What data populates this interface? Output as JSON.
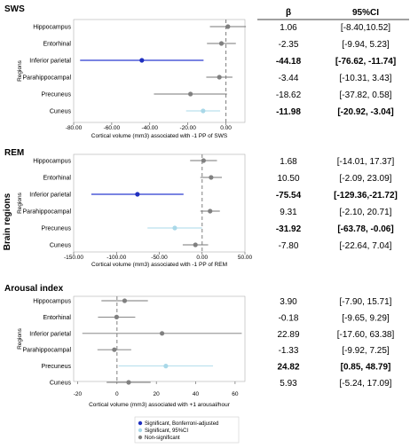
{
  "side_label": "Brain regions",
  "table_headers": {
    "beta": "β",
    "ci": "95%CI"
  },
  "legend": [
    {
      "label": "Significant, Bonferroni-adjusted",
      "color": "#1f2fbf"
    },
    {
      "label": "Significant, 95%CI",
      "color": "#a9d8e8"
    },
    {
      "label": "Non-significant",
      "color": "#808080"
    }
  ],
  "chart_data": [
    {
      "type": "scatter",
      "title": "SWS",
      "xlabel": "Cortical volume (mm3) associated with -1 PP of SWS",
      "ylabel": "Regions",
      "xlim": [
        -80,
        10
      ],
      "xticks": [
        -80,
        -60,
        -40,
        -20,
        0
      ],
      "xtick_labels": [
        "-80.00",
        "-60.00",
        "-40.00",
        "-20.00",
        "0.00"
      ],
      "categories": [
        "Hippocampus",
        "Entorhinal",
        "Inferior parietal",
        "Parahippocampal",
        "Precuneus",
        "Cuneus"
      ],
      "estimates": [
        1.06,
        -2.35,
        -44.18,
        -3.44,
        -18.62,
        -11.98
      ],
      "ci_low": [
        -8.4,
        -9.94,
        -76.62,
        -10.31,
        -37.82,
        -20.92
      ],
      "ci_high": [
        10.52,
        5.23,
        -11.74,
        3.43,
        0.58,
        -3.04
      ],
      "significance": [
        "ns",
        "ns",
        "bonferroni",
        "ns",
        "ns",
        "ci95"
      ],
      "beta_text": [
        "1.06",
        "-2.35",
        "-44.18",
        "-3.44",
        "-18.62",
        "-11.98"
      ],
      "ci_text": [
        "[-8.40,10.52]",
        "[-9.94, 5.23]",
        "[-76.62, -11.74]",
        "[-10.31, 3.43]",
        "[-37.82, 0.58]",
        "[-20.92, -3.04]"
      ],
      "bold_rows": [
        2,
        5
      ]
    },
    {
      "type": "scatter",
      "title": "REM",
      "xlabel": "Cortical volume (mm3) associated with -1 PP of REM",
      "ylabel": "Regions",
      "xlim": [
        -150,
        50
      ],
      "xticks": [
        -150,
        -100,
        -50,
        0,
        50
      ],
      "xtick_labels": [
        "-150.00",
        "-100.00",
        "-50.00",
        "0.00",
        "50.00"
      ],
      "categories": [
        "Hippocampus",
        "Entorhinal",
        "Inferior parietal",
        "Parahippocampal",
        "Precuneus",
        "Cuneus"
      ],
      "estimates": [
        1.68,
        10.5,
        -75.54,
        9.31,
        -31.92,
        -7.8
      ],
      "ci_low": [
        -14.01,
        -2.09,
        -129.36,
        -2.1,
        -63.78,
        -22.64
      ],
      "ci_high": [
        17.37,
        23.09,
        -21.72,
        20.71,
        -0.06,
        7.04
      ],
      "significance": [
        "ns",
        "ns",
        "bonferroni",
        "ns",
        "ci95",
        "ns"
      ],
      "beta_text": [
        "1.68",
        "10.50",
        "-75.54",
        "9.31",
        "-31.92",
        "-7.80"
      ],
      "ci_text": [
        "[-14.01, 17.37]",
        "[-2.09, 23.09]",
        "[-129.36,-21.72]",
        "[-2.10, 20.71]",
        "[-63.78, -0.06]",
        "[-22.64, 7.04]"
      ],
      "bold_rows": [
        2,
        4
      ]
    },
    {
      "type": "scatter",
      "title": "Arousal index",
      "xlabel": "Cortical volume (mm3) associated with +1 arousal/hour",
      "ylabel": "Regions",
      "xlim": [
        -22,
        65
      ],
      "xticks": [
        -20,
        0,
        20,
        40,
        60
      ],
      "xtick_labels": [
        "-20",
        "0",
        "20",
        "40",
        "60"
      ],
      "categories": [
        "Hippocampus",
        "Entorhinal",
        "Inferior parietal",
        "Parahippocampal",
        "Precuneus",
        "Cuneus"
      ],
      "estimates": [
        3.9,
        -0.18,
        22.89,
        -1.33,
        24.82,
        5.93
      ],
      "ci_low": [
        -7.9,
        -9.65,
        -17.6,
        -9.92,
        0.85,
        -5.24
      ],
      "ci_high": [
        15.71,
        9.29,
        63.38,
        7.25,
        48.79,
        17.09
      ],
      "significance": [
        "ns",
        "ns",
        "ns",
        "ns",
        "ci95",
        "ns"
      ],
      "beta_text": [
        "3.90",
        "-0.18",
        "22.89",
        "-1.33",
        "24.82",
        "5.93"
      ],
      "ci_text": [
        "[-7.90, 15.71]",
        "[-9.65, 9.29]",
        "[-17.60, 63.38]",
        "[-9.92, 7.25]",
        "[0.85, 48.79]",
        "[-5.24, 17.09]"
      ],
      "bold_rows": [
        4
      ]
    }
  ]
}
